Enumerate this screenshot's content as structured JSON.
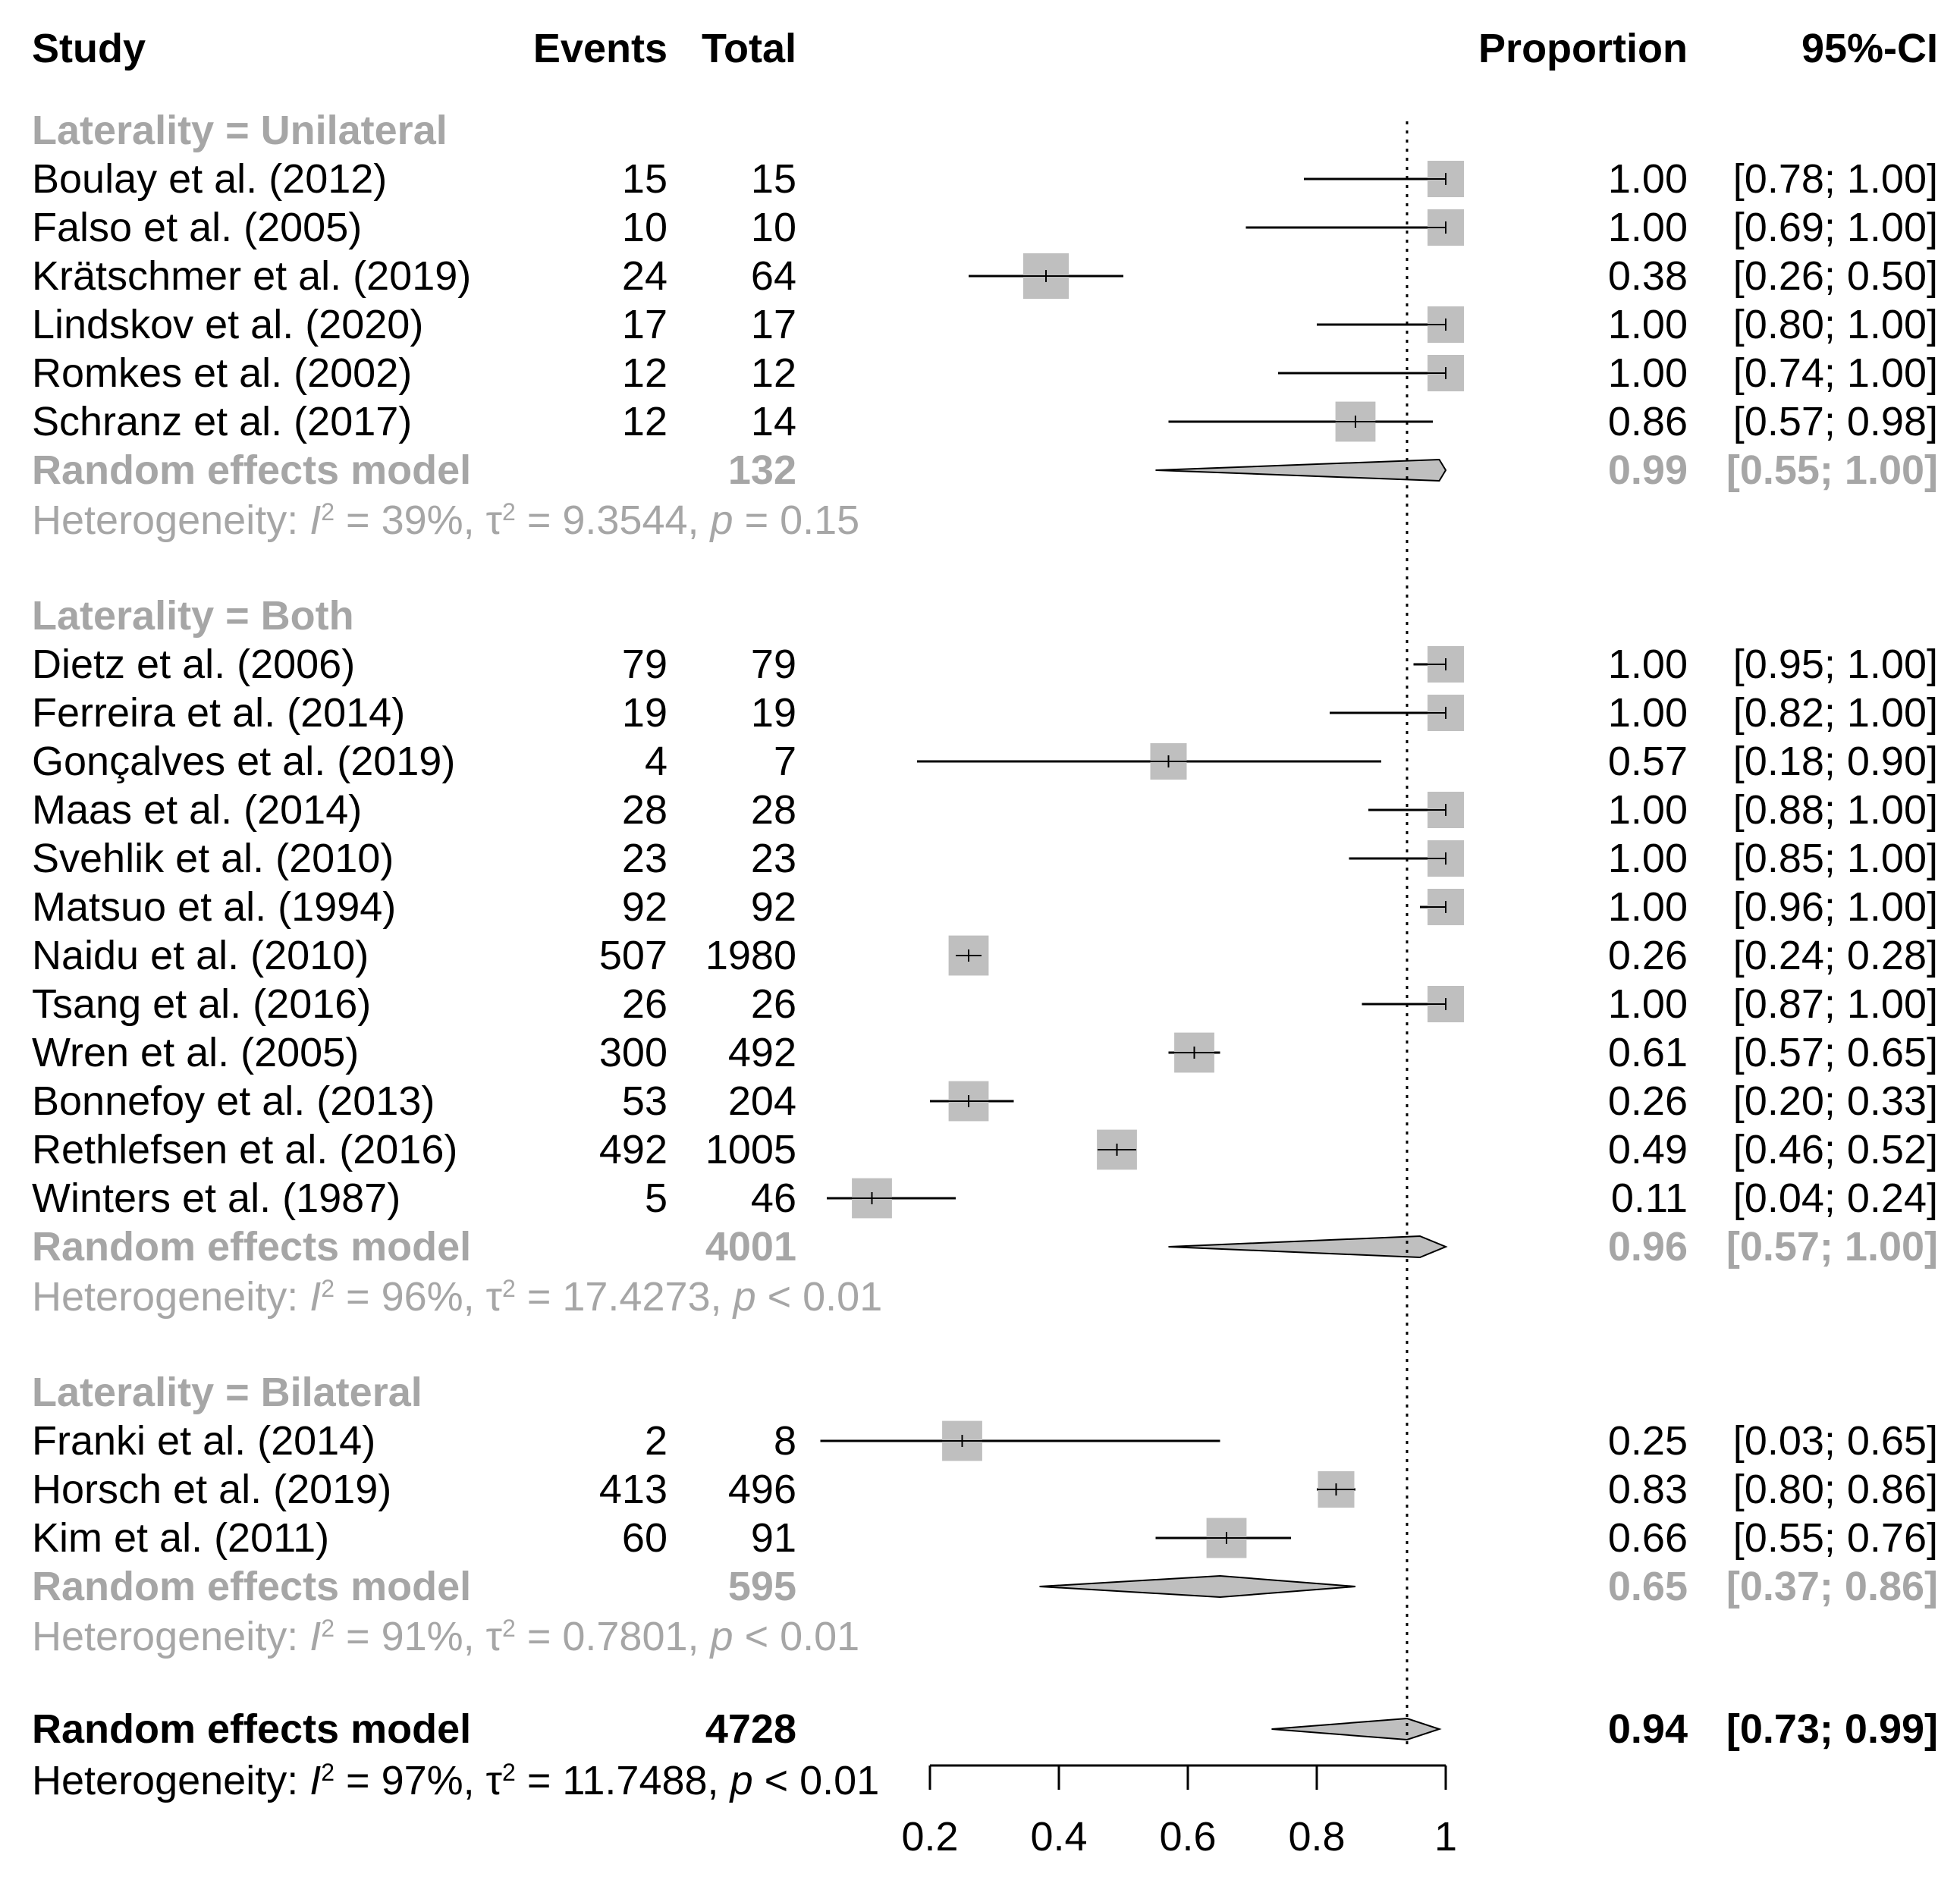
{
  "chart_data": {
    "type": "forest",
    "xlim": [
      0.2,
      1
    ],
    "xticks": [
      "0.2",
      "0.4",
      "0.6",
      "0.8",
      "1"
    ],
    "reference_line": 0.94,
    "headers": {
      "study": "Study",
      "events": "Events",
      "total": "Total",
      "proportion": "Proportion",
      "ci": "95%-CI"
    },
    "subgroups": [
      {
        "label": "Laterality = Unilateral",
        "studies": [
          {
            "study": "Boulay et al. (2012)",
            "events": "15",
            "total": "15",
            "proportion": "1.00",
            "ci": "[0.78; 1.00]",
            "est": 1.0,
            "lo": 0.78,
            "hi": 1.0,
            "weight": 0.5
          },
          {
            "study": "Falso et al. (2005)",
            "events": "10",
            "total": "10",
            "proportion": "1.00",
            "ci": "[0.69; 1.00]",
            "est": 1.0,
            "lo": 0.69,
            "hi": 1.0,
            "weight": 0.5
          },
          {
            "study": "Krätschmer et al. (2019)",
            "events": "24",
            "total": "64",
            "proportion": "0.38",
            "ci": "[0.26; 0.50]",
            "est": 0.38,
            "lo": 0.26,
            "hi": 0.5,
            "weight": 0.85
          },
          {
            "study": "Lindskov et al. (2020)",
            "events": "17",
            "total": "17",
            "proportion": "1.00",
            "ci": "[0.80; 1.00]",
            "est": 1.0,
            "lo": 0.8,
            "hi": 1.0,
            "weight": 0.5
          },
          {
            "study": "Romkes et al. (2002)",
            "events": "12",
            "total": "12",
            "proportion": "1.00",
            "ci": "[0.74; 1.00]",
            "est": 1.0,
            "lo": 0.74,
            "hi": 1.0,
            "weight": 0.5
          },
          {
            "study": "Schranz et al. (2017)",
            "events": "12",
            "total": "14",
            "proportion": "0.86",
            "ci": "[0.57; 0.98]",
            "est": 0.86,
            "lo": 0.57,
            "hi": 0.98,
            "weight": 0.55
          }
        ],
        "model": {
          "label": "Random effects model",
          "total": "132",
          "proportion": "0.99",
          "ci": "[0.55; 1.00]",
          "est": 0.99,
          "lo": 0.55,
          "hi": 1.0
        },
        "heterogeneity": {
          "prefix": "Heterogeneity: ",
          "i2_symbol": "I",
          "sup": "2",
          "i2": " = 39%, ",
          "tau_symbol": "τ",
          "tau2": " = 9.3544, ",
          "p_symbol": "p",
          "p": " = 0.15"
        }
      },
      {
        "label": "Laterality = Both",
        "studies": [
          {
            "study": "Dietz et al. (2006)",
            "events": "79",
            "total": "79",
            "proportion": "1.00",
            "ci": "[0.95; 1.00]",
            "est": 1.0,
            "lo": 0.95,
            "hi": 1.0,
            "weight": 0.5
          },
          {
            "study": "Ferreira et al. (2014)",
            "events": "19",
            "total": "19",
            "proportion": "1.00",
            "ci": "[0.82; 1.00]",
            "est": 1.0,
            "lo": 0.82,
            "hi": 1.0,
            "weight": 0.5
          },
          {
            "study": "Gonçalves et al. (2019)",
            "events": "4",
            "total": "7",
            "proportion": "0.57",
            "ci": "[0.18; 0.90]",
            "est": 0.57,
            "lo": 0.18,
            "hi": 0.9,
            "weight": 0.5
          },
          {
            "study": "Maas et al. (2014)",
            "events": "28",
            "total": "28",
            "proportion": "1.00",
            "ci": "[0.88; 1.00]",
            "est": 1.0,
            "lo": 0.88,
            "hi": 1.0,
            "weight": 0.5
          },
          {
            "study": "Svehlik et al. (2010)",
            "events": "23",
            "total": "23",
            "proportion": "1.00",
            "ci": "[0.85; 1.00]",
            "est": 1.0,
            "lo": 0.85,
            "hi": 1.0,
            "weight": 0.5
          },
          {
            "study": "Matsuo et al. (1994)",
            "events": "92",
            "total": "92",
            "proportion": "1.00",
            "ci": "[0.96; 1.00]",
            "est": 1.0,
            "lo": 0.96,
            "hi": 1.0,
            "weight": 0.5
          },
          {
            "study": "Naidu et al. (2010)",
            "events": "507",
            "total": "1980",
            "proportion": "0.26",
            "ci": "[0.24; 0.28]",
            "est": 0.26,
            "lo": 0.24,
            "hi": 0.28,
            "weight": 0.55
          },
          {
            "study": "Tsang et al. (2016)",
            "events": "26",
            "total": "26",
            "proportion": "1.00",
            "ci": "[0.87; 1.00]",
            "est": 1.0,
            "lo": 0.87,
            "hi": 1.0,
            "weight": 0.5
          },
          {
            "study": "Wren et al. (2005)",
            "events": "300",
            "total": "492",
            "proportion": "0.61",
            "ci": "[0.57; 0.65]",
            "est": 0.61,
            "lo": 0.57,
            "hi": 0.65,
            "weight": 0.55
          },
          {
            "study": "Bonnefoy et al. (2013)",
            "events": "53",
            "total": "204",
            "proportion": "0.26",
            "ci": "[0.20; 0.33]",
            "est": 0.26,
            "lo": 0.2,
            "hi": 0.33,
            "weight": 0.55
          },
          {
            "study": "Rethlefsen et al. (2016)",
            "events": "492",
            "total": "1005",
            "proportion": "0.49",
            "ci": "[0.46; 0.52]",
            "est": 0.49,
            "lo": 0.46,
            "hi": 0.52,
            "weight": 0.55
          },
          {
            "study": "Winters et al. (1987)",
            "events": "5",
            "total": "46",
            "proportion": "0.11",
            "ci": "[0.04; 0.24]",
            "est": 0.11,
            "lo": 0.04,
            "hi": 0.24,
            "weight": 0.55
          }
        ],
        "model": {
          "label": "Random effects model",
          "total": "4001",
          "proportion": "0.96",
          "ci": "[0.57; 1.00]",
          "est": 0.96,
          "lo": 0.57,
          "hi": 1.0
        },
        "heterogeneity": {
          "prefix": "Heterogeneity: ",
          "i2_symbol": "I",
          "sup": "2",
          "i2": " = 96%, ",
          "tau_symbol": "τ",
          "tau2": " = 17.4273, ",
          "p_symbol": "p",
          "p": " < 0.01"
        }
      },
      {
        "label": "Laterality = Bilateral",
        "studies": [
          {
            "study": "Franki et al. (2014)",
            "events": "2",
            "total": "8",
            "proportion": "0.25",
            "ci": "[0.03; 0.65]",
            "est": 0.25,
            "lo": 0.03,
            "hi": 0.65,
            "weight": 0.55
          },
          {
            "study": "Horsch et al. (2019)",
            "events": "413",
            "total": "496",
            "proportion": "0.83",
            "ci": "[0.80; 0.86]",
            "est": 0.83,
            "lo": 0.8,
            "hi": 0.86,
            "weight": 0.5
          },
          {
            "study": "Kim et al. (2011)",
            "events": "60",
            "total": "91",
            "proportion": "0.66",
            "ci": "[0.55; 0.76]",
            "est": 0.66,
            "lo": 0.55,
            "hi": 0.76,
            "weight": 0.55
          }
        ],
        "model": {
          "label": "Random effects model",
          "total": "595",
          "proportion": "0.65",
          "ci": "[0.37; 0.86]",
          "est": 0.65,
          "lo": 0.37,
          "hi": 0.86
        },
        "heterogeneity": {
          "prefix": "Heterogeneity: ",
          "i2_symbol": "I",
          "sup": "2",
          "i2": " = 91%, ",
          "tau_symbol": "τ",
          "tau2": " = 0.7801, ",
          "p_symbol": "p",
          "p": " < 0.01"
        }
      }
    ],
    "overall": {
      "label": "Random effects model",
      "total": "4728",
      "proportion": "0.94",
      "ci": "[0.73; 0.99]",
      "est": 0.94,
      "lo": 0.73,
      "hi": 0.99,
      "heterogeneity": {
        "prefix": "Heterogeneity: ",
        "i2_symbol": "I",
        "sup": "2",
        "i2": " = 97%, ",
        "tau_symbol": "τ",
        "tau2": " = 11.7488, ",
        "p_symbol": "p",
        "p": " < 0.01"
      }
    },
    "colors": {
      "text": "#000000",
      "muted": "#a6a6a6",
      "box": "#bfbfbf",
      "diamond": "#bfbfbf",
      "line": "#000000"
    }
  }
}
